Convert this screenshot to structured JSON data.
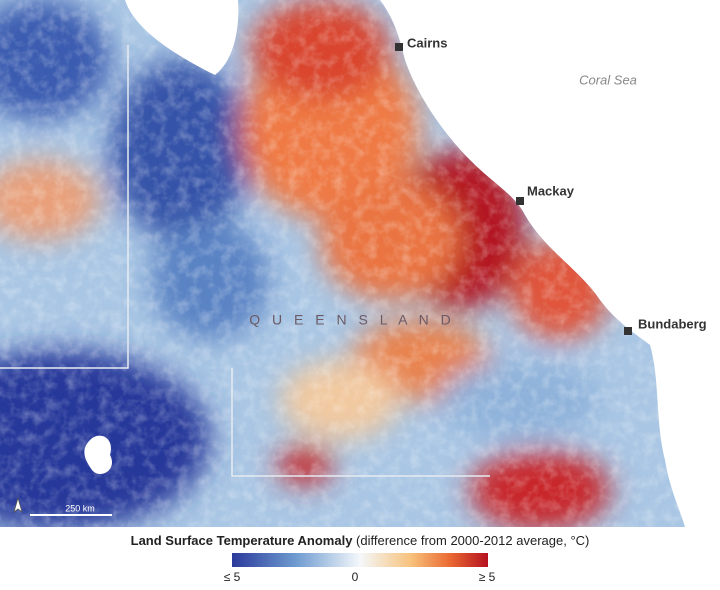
{
  "map": {
    "places": [
      {
        "label": "Cairns"
      },
      {
        "label": "Mackay"
      },
      {
        "label": "Bundaberg"
      }
    ],
    "water_label": "Coral Sea",
    "region_label": "Q U E E N S L A N D",
    "scale_label": "250 km",
    "legend": {
      "title": "Land Surface Temperature Anomaly",
      "subtitle": "(difference from 2000-2012 average, °C)",
      "ticks": [
        "≤ 5",
        "0",
        "≥ 5"
      ]
    }
  }
}
